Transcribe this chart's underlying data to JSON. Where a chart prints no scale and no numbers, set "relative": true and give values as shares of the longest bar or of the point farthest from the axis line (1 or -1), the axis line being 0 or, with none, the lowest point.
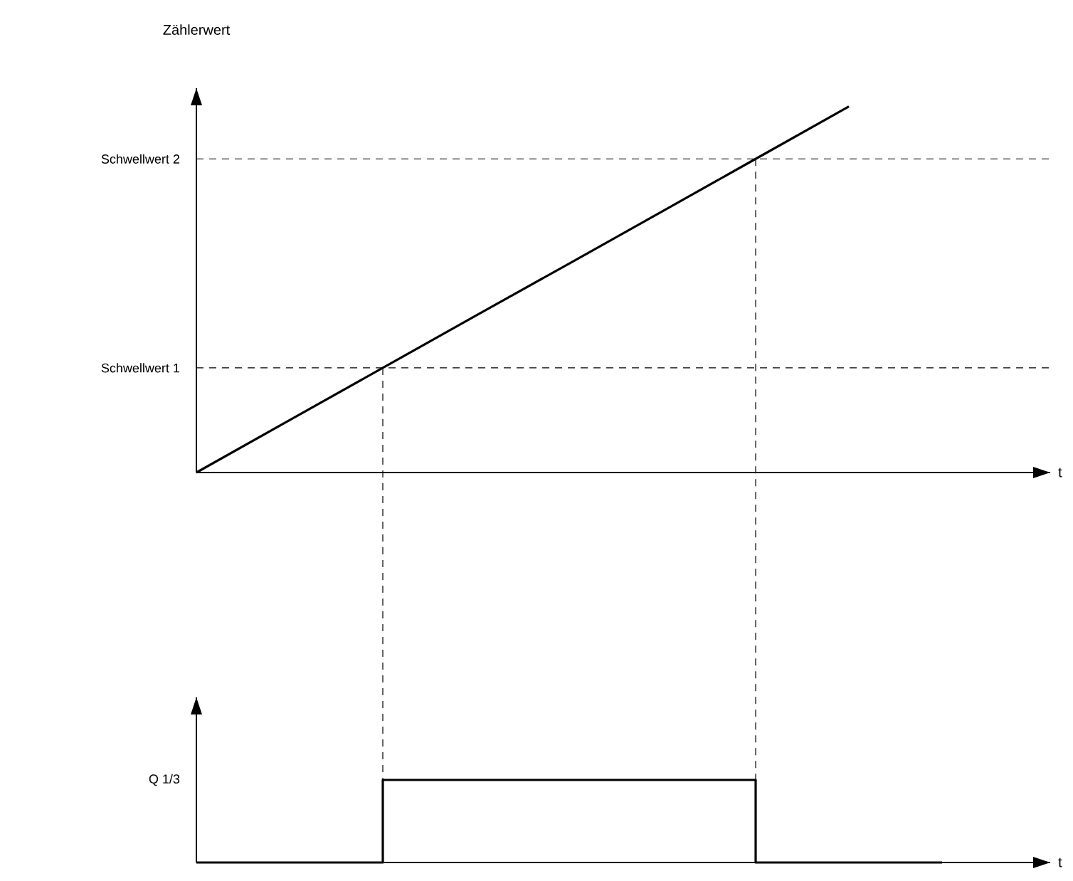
{
  "chart_data": [
    {
      "type": "line",
      "relative": true,
      "ylabel": "Zählerwert",
      "xlabel": "t",
      "line_style": "solid",
      "marker": "none",
      "categories": [
        null,
        null,
        null,
        null,
        null,
        null,
        null,
        null,
        null
      ],
      "series": [
        {
          "color": "#000000",
          "values": [
            0,
            0.143,
            0.286,
            0.429,
            0.571,
            0.714,
            0.857,
            1,
            null
          ]
        }
      ],
      "ref_lines": [
        {
          "axis": "y",
          "value": 0.286,
          "label": "Schwellwert 1",
          "line_style": "dashed",
          "color": "#000000"
        },
        {
          "axis": "y",
          "value": 0.857,
          "label": "Schwellwert 2",
          "line_style": "dashed",
          "color": "#000000"
        }
      ]
    },
    {
      "type": "step",
      "relative": true,
      "xlabel": "t",
      "line_style": "solid",
      "marker": "none",
      "categories": [
        null,
        null,
        null,
        null,
        null,
        null,
        null,
        null,
        null
      ],
      "series": [
        {
          "name": "Q 1/3",
          "color": "#000000",
          "values": [
            0,
            0,
            1,
            1,
            1,
            1,
            0,
            0,
            0
          ]
        }
      ]
    }
  ]
}
